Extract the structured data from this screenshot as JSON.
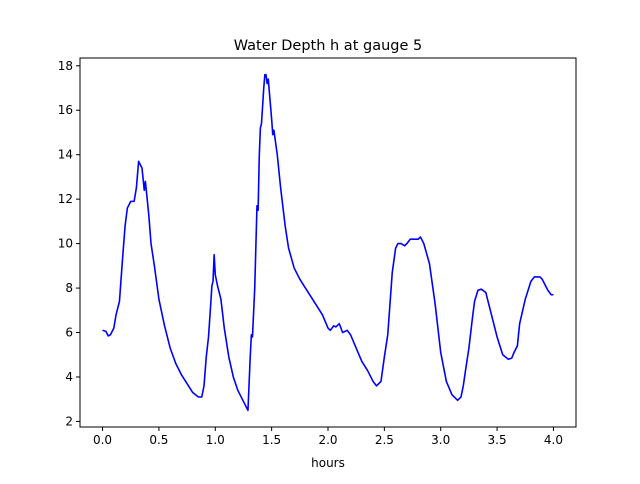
{
  "chart_data": {
    "type": "line",
    "title": "Water Depth h at gauge 5",
    "xlabel": "hours",
    "ylabel": "",
    "xlim": [
      -0.2,
      4.2
    ],
    "ylim": [
      1.75,
      18.35
    ],
    "xticks": [
      0.0,
      0.5,
      1.0,
      1.5,
      2.0,
      2.5,
      3.0,
      3.5,
      4.0
    ],
    "xtick_labels": [
      "0.0",
      "0.5",
      "1.0",
      "1.5",
      "2.0",
      "2.5",
      "3.0",
      "3.5",
      "4.0"
    ],
    "yticks": [
      2,
      4,
      6,
      8,
      10,
      12,
      14,
      16,
      18
    ],
    "ytick_labels": [
      "2",
      "4",
      "6",
      "8",
      "10",
      "12",
      "14",
      "16",
      "18"
    ],
    "grid": false,
    "series": [
      {
        "color": "#0000ff",
        "x": [
          0.0,
          0.03,
          0.05,
          0.07,
          0.1,
          0.12,
          0.15,
          0.18,
          0.2,
          0.22,
          0.25,
          0.28,
          0.3,
          0.32,
          0.35,
          0.36,
          0.37,
          0.38,
          0.39,
          0.41,
          0.43,
          0.46,
          0.5,
          0.55,
          0.6,
          0.65,
          0.7,
          0.75,
          0.8,
          0.85,
          0.88,
          0.9,
          0.92,
          0.94,
          0.96,
          0.97,
          0.98,
          0.99,
          1.0,
          1.02,
          1.05,
          1.08,
          1.12,
          1.16,
          1.2,
          1.25,
          1.29,
          1.31,
          1.32,
          1.33,
          1.35,
          1.37,
          1.38,
          1.39,
          1.4,
          1.41,
          1.42,
          1.43,
          1.44,
          1.45,
          1.46,
          1.47,
          1.48,
          1.5,
          1.51,
          1.52,
          1.55,
          1.58,
          1.62,
          1.65,
          1.7,
          1.75,
          1.8,
          1.85,
          1.9,
          1.95,
          2.0,
          2.02,
          2.05,
          2.07,
          2.1,
          2.13,
          2.17,
          2.2,
          2.25,
          2.3,
          2.35,
          2.4,
          2.43,
          2.47,
          2.5,
          2.53,
          2.55,
          2.57,
          2.6,
          2.62,
          2.65,
          2.68,
          2.7,
          2.73,
          2.75,
          2.78,
          2.8,
          2.82,
          2.85,
          2.9,
          2.95,
          3.0,
          3.05,
          3.1,
          3.15,
          3.18,
          3.2,
          3.22,
          3.25,
          3.28,
          3.3,
          3.33,
          3.36,
          3.4,
          3.42,
          3.45,
          3.5,
          3.55,
          3.6,
          3.63,
          3.65,
          3.68,
          3.7,
          3.75,
          3.8,
          3.83,
          3.85,
          3.88,
          3.9,
          3.92,
          3.95,
          3.98,
          4.0
        ],
        "y": [
          6.1,
          6.05,
          5.85,
          5.9,
          6.2,
          6.8,
          7.4,
          9.5,
          10.8,
          11.6,
          11.9,
          11.9,
          12.5,
          13.7,
          13.4,
          12.9,
          12.4,
          12.8,
          12.3,
          11.3,
          10.0,
          9.0,
          7.5,
          6.3,
          5.3,
          4.6,
          4.1,
          3.7,
          3.3,
          3.1,
          3.1,
          3.6,
          4.9,
          5.8,
          7.3,
          8.1,
          8.3,
          9.5,
          8.6,
          8.1,
          7.5,
          6.2,
          4.9,
          4.0,
          3.4,
          2.9,
          2.5,
          4.9,
          5.9,
          5.8,
          8.0,
          11.7,
          11.5,
          13.9,
          15.2,
          15.4,
          16.2,
          17.0,
          17.6,
          17.6,
          17.2,
          17.4,
          16.8,
          15.6,
          14.9,
          15.1,
          14.0,
          12.5,
          10.8,
          9.8,
          8.9,
          8.4,
          8.0,
          7.6,
          7.2,
          6.8,
          6.2,
          6.1,
          6.3,
          6.25,
          6.4,
          6.0,
          6.1,
          5.9,
          5.3,
          4.7,
          4.3,
          3.8,
          3.6,
          3.8,
          4.9,
          5.9,
          7.3,
          8.7,
          9.8,
          10.0,
          10.0,
          9.9,
          10.0,
          10.2,
          10.2,
          10.2,
          10.2,
          10.3,
          10.0,
          9.1,
          7.3,
          5.1,
          3.8,
          3.2,
          2.95,
          3.1,
          3.6,
          4.3,
          5.3,
          6.6,
          7.4,
          7.9,
          7.95,
          7.8,
          7.4,
          6.8,
          5.8,
          5.0,
          4.8,
          4.85,
          5.1,
          5.4,
          6.4,
          7.5,
          8.3,
          8.5,
          8.5,
          8.5,
          8.4,
          8.2,
          7.9,
          7.7,
          7.7
        ]
      }
    ]
  }
}
